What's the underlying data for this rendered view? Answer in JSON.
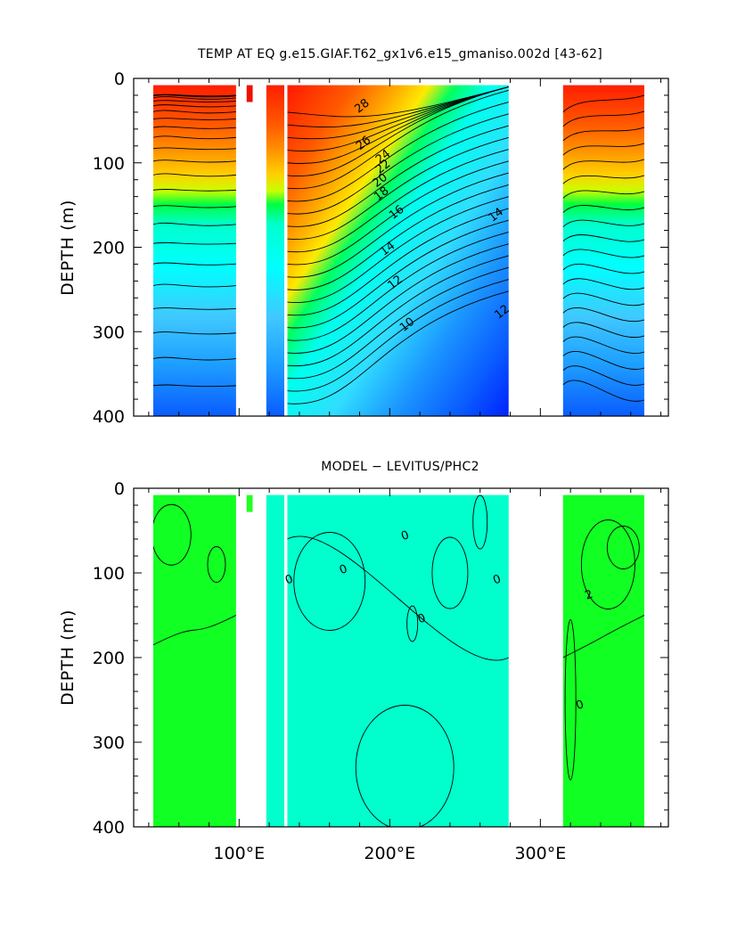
{
  "chart_data": [
    {
      "type": "heatmap",
      "panel": "top",
      "title": "TEMP AT EQ g.e15.GIAF.T62_gx1v6.e15_gmaniso.002d [43-62]",
      "xlabel": "",
      "ylabel": "DEPTH (m)",
      "xlim": [
        30,
        385
      ],
      "ylim": [
        400,
        0
      ],
      "yticks": [
        0,
        100,
        200,
        300,
        400
      ],
      "ytick_labels": [
        "0",
        "100",
        "200",
        "300",
        "400"
      ],
      "xticks": [
        100,
        200,
        300
      ],
      "xtick_labels": [],
      "ocean_segments": [
        [
          43,
          98
        ],
        [
          118,
          130
        ],
        [
          132,
          279
        ],
        [
          315,
          369
        ]
      ],
      "small_columns": [
        [
          105,
          109
        ]
      ],
      "contour_interval": 1,
      "contour_labels": [
        {
          "text": "28",
          "x": 183,
          "depth": 36
        },
        {
          "text": "26",
          "x": 184,
          "depth": 80
        },
        {
          "text": "24",
          "x": 197,
          "depth": 96
        },
        {
          "text": "22",
          "x": 197,
          "depth": 108
        },
        {
          "text": "20",
          "x": 195,
          "depth": 124
        },
        {
          "text": "18",
          "x": 196,
          "depth": 140
        },
        {
          "text": "16",
          "x": 206,
          "depth": 162
        },
        {
          "text": "14",
          "x": 200,
          "depth": 205
        },
        {
          "text": "12",
          "x": 205,
          "depth": 245
        },
        {
          "text": "10",
          "x": 213,
          "depth": 295
        },
        {
          "text": "14",
          "x": 272,
          "depth": 165
        },
        {
          "text": "12",
          "x": 276,
          "depth": 280
        }
      ]
    },
    {
      "type": "heatmap",
      "panel": "bottom",
      "title": "MODEL − LEVITUS/PHC2",
      "xlabel": "",
      "ylabel": "DEPTH (m)",
      "xlim": [
        30,
        385
      ],
      "ylim": [
        400,
        0
      ],
      "yticks": [
        0,
        100,
        200,
        300,
        400
      ],
      "ytick_labels": [
        "0",
        "100",
        "200",
        "300",
        "400"
      ],
      "xticks": [
        100,
        200,
        300
      ],
      "xtick_labels": [
        "100°E",
        "200°E",
        "300°E"
      ],
      "ocean_segments": [
        [
          43,
          98
        ],
        [
          118,
          130
        ],
        [
          132,
          279
        ],
        [
          315,
          369
        ]
      ],
      "small_columns": [
        [
          105,
          109
        ]
      ],
      "contour_interval": 1,
      "contour_labels": [
        {
          "text": "0",
          "x": 211,
          "depth": 60
        },
        {
          "text": "0",
          "x": 170,
          "depth": 100
        },
        {
          "text": "0",
          "x": 134,
          "depth": 112
        },
        {
          "text": "0",
          "x": 222,
          "depth": 158
        },
        {
          "text": "0",
          "x": 272,
          "depth": 112
        },
        {
          "text": "2",
          "x": 333,
          "depth": 130
        },
        {
          "text": "0",
          "x": 327,
          "depth": 260
        }
      ]
    }
  ]
}
